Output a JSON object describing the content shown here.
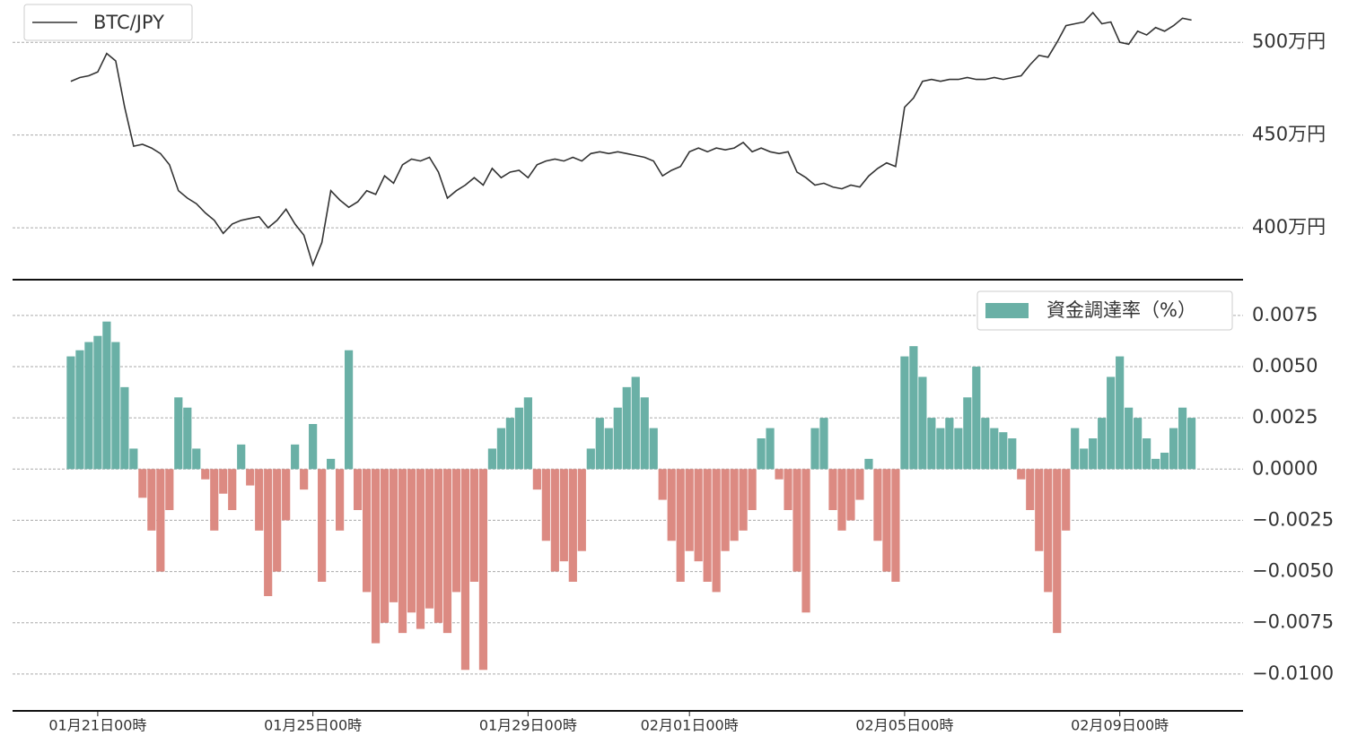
{
  "chart_data": [
    {
      "type": "line",
      "legend": "upper left",
      "grid": true,
      "series": [
        {
          "name": "BTC/JPY",
          "color": "#333333",
          "values": [
            479,
            481,
            482,
            484,
            494,
            490,
            465,
            444,
            445,
            443,
            440,
            434,
            420,
            416,
            413,
            408,
            404,
            397,
            402,
            404,
            405,
            406,
            400,
            404,
            410,
            402,
            396,
            380,
            392,
            420,
            415,
            411,
            414,
            420,
            418,
            428,
            424,
            434,
            437,
            436,
            438,
            430,
            416,
            420,
            423,
            427,
            423,
            432,
            427,
            430,
            431,
            427,
            434,
            436,
            437,
            436,
            438,
            436,
            440,
            441,
            440,
            441,
            440,
            439,
            438,
            436,
            428,
            431,
            433,
            441,
            443,
            441,
            443,
            442,
            443,
            446,
            441,
            443,
            441,
            440,
            441,
            430,
            427,
            423,
            424,
            422,
            421,
            423,
            422,
            428,
            432,
            435,
            433,
            465,
            470,
            479,
            480,
            479,
            480,
            480,
            481,
            480,
            480,
            481,
            480,
            481,
            482,
            488,
            493,
            492,
            500,
            509,
            510,
            511,
            516,
            510,
            511,
            500,
            499,
            506,
            504,
            508,
            506,
            509,
            513,
            512
          ]
        }
      ],
      "x": [
        "01-20 12:00",
        "01-20 16:00",
        "01-20 20:00",
        "01-21 00:00",
        "01-21 04:00",
        "01-21 08:00",
        "01-21 12:00",
        "01-21 16:00",
        "01-21 20:00",
        "01-22 00:00",
        "01-22 04:00",
        "01-22 08:00",
        "01-22 12:00",
        "01-22 16:00",
        "01-22 20:00",
        "01-23 00:00",
        "01-23 04:00",
        "01-23 08:00",
        "01-23 12:00",
        "01-23 16:00",
        "01-23 20:00",
        "01-24 00:00",
        "01-24 04:00",
        "01-24 08:00",
        "01-24 12:00",
        "01-24 16:00",
        "01-24 20:00",
        "01-25 00:00",
        "01-25 04:00",
        "01-25 08:00",
        "01-25 12:00",
        "01-25 16:00",
        "01-25 20:00",
        "01-26 00:00",
        "01-26 04:00",
        "01-26 08:00",
        "01-26 12:00",
        "01-26 16:00",
        "01-26 20:00",
        "01-27 00:00",
        "01-27 04:00",
        "01-27 08:00",
        "01-27 12:00",
        "01-27 16:00",
        "01-27 20:00",
        "01-28 00:00",
        "01-28 04:00",
        "01-28 08:00",
        "01-28 12:00",
        "01-28 16:00",
        "01-28 20:00",
        "01-29 00:00",
        "01-29 04:00",
        "01-29 08:00",
        "01-29 12:00",
        "01-29 16:00",
        "01-29 20:00",
        "01-30 00:00",
        "01-30 04:00",
        "01-30 08:00",
        "01-30 12:00",
        "01-30 16:00",
        "01-30 20:00",
        "01-31 00:00",
        "01-31 04:00",
        "01-31 08:00",
        "01-31 12:00",
        "01-31 16:00",
        "01-31 20:00",
        "02-01 00:00",
        "02-01 04:00",
        "02-01 08:00",
        "02-01 12:00",
        "02-01 16:00",
        "02-01 20:00",
        "02-02 00:00",
        "02-02 04:00",
        "02-02 08:00",
        "02-02 12:00",
        "02-02 16:00",
        "02-02 20:00",
        "02-03 00:00",
        "02-03 04:00",
        "02-03 08:00",
        "02-03 12:00",
        "02-03 16:00",
        "02-03 20:00",
        "02-04 00:00",
        "02-04 04:00",
        "02-04 08:00",
        "02-04 12:00",
        "02-04 16:00",
        "02-04 20:00",
        "02-05 00:00",
        "02-05 04:00",
        "02-05 08:00",
        "02-05 12:00",
        "02-05 16:00",
        "02-05 20:00",
        "02-06 00:00",
        "02-06 04:00",
        "02-06 08:00",
        "02-06 12:00",
        "02-06 16:00",
        "02-06 20:00",
        "02-07 00:00",
        "02-07 04:00",
        "02-07 08:00",
        "02-07 12:00",
        "02-07 16:00",
        "02-07 20:00",
        "02-08 00:00",
        "02-08 04:00",
        "02-08 08:00",
        "02-08 12:00",
        "02-08 16:00",
        "02-08 20:00",
        "02-09 00:00",
        "02-09 04:00",
        "02-09 08:00",
        "02-09 12:00",
        "02-09 16:00",
        "02-09 20:00",
        "02-10 00:00",
        "02-10 04:00",
        "02-10 08:00"
      ],
      "xlim": [
        "01-19 10:00",
        "02-11 07:00"
      ],
      "ylim": [
        372,
        518
      ],
      "yticks": [
        {
          "value": 400,
          "label": "400万円"
        },
        {
          "value": 450,
          "label": "450万円"
        },
        {
          "value": 500,
          "label": "500万円"
        }
      ]
    },
    {
      "type": "bar",
      "legend": "upper right",
      "grid": true,
      "series": [
        {
          "name": "資金調達率（%）",
          "color": "#6ab0a6",
          "negative_color": "#dc8a82",
          "values": [
            0.0055,
            0.0058,
            0.0062,
            0.0065,
            0.0072,
            0.0062,
            0.004,
            0.001,
            -0.0014,
            -0.003,
            -0.005,
            -0.002,
            0.0035,
            0.003,
            0.001,
            -0.0005,
            -0.003,
            -0.0012,
            -0.002,
            0.0012,
            -0.0008,
            -0.003,
            -0.0062,
            -0.005,
            -0.0025,
            0.0012,
            -0.001,
            0.0022,
            -0.0055,
            0.0005,
            -0.003,
            0.0058,
            -0.002,
            -0.006,
            -0.0085,
            -0.0075,
            -0.0065,
            -0.008,
            -0.007,
            -0.0078,
            -0.0068,
            -0.0075,
            -0.008,
            -0.006,
            -0.0098,
            -0.0055,
            -0.0098,
            0.001,
            0.002,
            0.0025,
            0.003,
            0.0035,
            -0.001,
            -0.0035,
            -0.005,
            -0.0045,
            -0.0055,
            -0.004,
            0.001,
            0.0025,
            0.002,
            0.003,
            0.004,
            0.0045,
            0.0035,
            0.002,
            -0.0015,
            -0.0035,
            -0.0055,
            -0.004,
            -0.0045,
            -0.0055,
            -0.006,
            -0.004,
            -0.0035,
            -0.003,
            -0.002,
            0.0015,
            0.002,
            -0.0005,
            -0.002,
            -0.005,
            -0.007,
            0.002,
            0.0025,
            -0.002,
            -0.003,
            -0.0025,
            -0.0015,
            0.0005,
            -0.0035,
            -0.005,
            -0.0055,
            0.0055,
            0.006,
            0.0045,
            0.0025,
            0.002,
            0.0025,
            0.002,
            0.0035,
            0.005,
            0.0025,
            0.002,
            0.0018,
            0.0015,
            -0.0005,
            -0.002,
            -0.004,
            -0.006,
            -0.008,
            -0.003,
            0.002,
            0.001,
            0.0015,
            0.0025,
            0.0045,
            0.0055,
            0.003,
            0.0025,
            0.0015,
            0.0005,
            0.0008,
            0.002,
            0.003,
            0.0025
          ]
        }
      ],
      "x": [
        "01-20 12:00",
        "01-20 16:00",
        "01-20 20:00",
        "01-21 00:00",
        "01-21 04:00",
        "01-21 08:00",
        "01-21 12:00",
        "01-21 16:00",
        "01-21 20:00",
        "01-22 00:00",
        "01-22 04:00",
        "01-22 08:00",
        "01-22 12:00",
        "01-22 16:00",
        "01-22 20:00",
        "01-23 00:00",
        "01-23 04:00",
        "01-23 08:00",
        "01-23 12:00",
        "01-23 16:00",
        "01-23 20:00",
        "01-24 00:00",
        "01-24 04:00",
        "01-24 08:00",
        "01-24 12:00",
        "01-24 16:00",
        "01-24 20:00",
        "01-25 00:00",
        "01-25 04:00",
        "01-25 08:00",
        "01-25 12:00",
        "01-25 16:00",
        "01-25 20:00",
        "01-26 00:00",
        "01-26 04:00",
        "01-26 08:00",
        "01-26 12:00",
        "01-26 16:00",
        "01-26 20:00",
        "01-27 00:00",
        "01-27 04:00",
        "01-27 08:00",
        "01-27 12:00",
        "01-27 16:00",
        "01-27 20:00",
        "01-28 00:00",
        "01-28 04:00",
        "01-28 08:00",
        "01-28 12:00",
        "01-28 16:00",
        "01-28 20:00",
        "01-29 00:00",
        "01-29 04:00",
        "01-29 08:00",
        "01-29 12:00",
        "01-29 16:00",
        "01-29 20:00",
        "01-30 00:00",
        "01-30 04:00",
        "01-30 08:00",
        "01-30 12:00",
        "01-30 16:00",
        "01-30 20:00",
        "01-31 00:00",
        "01-31 04:00",
        "01-31 08:00",
        "01-31 12:00",
        "01-31 16:00",
        "01-31 20:00",
        "02-01 00:00",
        "02-01 04:00",
        "02-01 08:00",
        "02-01 12:00",
        "02-01 16:00",
        "02-01 20:00",
        "02-02 00:00",
        "02-02 04:00",
        "02-02 08:00",
        "02-02 12:00",
        "02-02 16:00",
        "02-02 20:00",
        "02-03 00:00",
        "02-03 04:00",
        "02-03 08:00",
        "02-03 12:00",
        "02-03 16:00",
        "02-03 20:00",
        "02-04 00:00",
        "02-04 04:00",
        "02-04 08:00",
        "02-04 12:00",
        "02-04 16:00",
        "02-04 20:00",
        "02-05 00:00",
        "02-05 04:00",
        "02-05 08:00",
        "02-05 12:00",
        "02-05 16:00",
        "02-05 20:00",
        "02-06 00:00",
        "02-06 04:00",
        "02-06 08:00",
        "02-06 12:00",
        "02-06 16:00",
        "02-06 20:00",
        "02-07 00:00",
        "02-07 04:00",
        "02-07 08:00",
        "02-07 12:00",
        "02-07 16:00",
        "02-07 20:00",
        "02-08 00:00",
        "02-08 04:00",
        "02-08 08:00",
        "02-08 12:00",
        "02-08 16:00",
        "02-08 20:00",
        "02-09 00:00",
        "02-09 04:00",
        "02-09 08:00",
        "02-09 12:00",
        "02-09 16:00",
        "02-09 20:00",
        "02-10 00:00",
        "02-10 04:00",
        "02-10 08:00"
      ],
      "xlim": [
        "01-19 10:00",
        "02-11 07:00"
      ],
      "xticks": [
        {
          "value": "01-21 00:00",
          "label": "01月21日00時"
        },
        {
          "value": "01-25 00:00",
          "label": "01月25日00時"
        },
        {
          "value": "01-29 00:00",
          "label": "01月29日00時"
        },
        {
          "value": "02-01 00:00",
          "label": "02月01日00時"
        },
        {
          "value": "02-05 00:00",
          "label": "02月05日00時"
        },
        {
          "value": "02-09 00:00",
          "label": "02月09日00時"
        }
      ],
      "ylim": [
        -0.0118,
        0.0092
      ],
      "yticks": [
        {
          "value": -0.01,
          "label": "−0.0100"
        },
        {
          "value": -0.0075,
          "label": "−0.0075"
        },
        {
          "value": -0.005,
          "label": "−0.0050"
        },
        {
          "value": -0.0025,
          "label": "−0.0025"
        },
        {
          "value": 0,
          "label": "0.0000"
        },
        {
          "value": 0.0025,
          "label": "0.0025"
        },
        {
          "value": 0.005,
          "label": "0.0050"
        },
        {
          "value": 0.0075,
          "label": "0.0075"
        }
      ]
    }
  ]
}
